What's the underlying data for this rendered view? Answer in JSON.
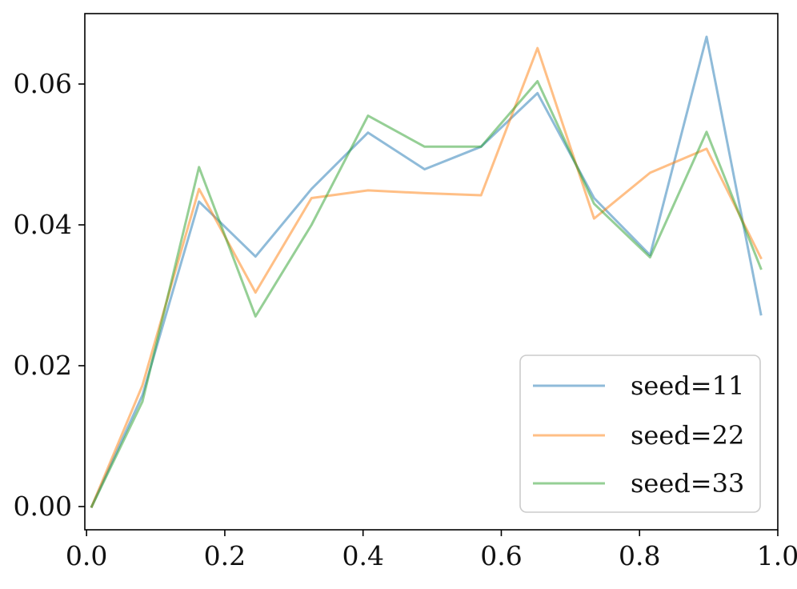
{
  "chart_data": {
    "type": "line",
    "title": "",
    "xlabel": "",
    "ylabel": "",
    "xlim": [
      -0.0025,
      1.0
    ],
    "ylim": [
      -0.0033,
      0.07
    ],
    "grid": false,
    "legend_position": "bottom-right",
    "x_ticks": [
      {
        "value": 0.0,
        "label": "0.0"
      },
      {
        "value": 0.2,
        "label": "0.2"
      },
      {
        "value": 0.4,
        "label": "0.4"
      },
      {
        "value": 0.6,
        "label": "0.6"
      },
      {
        "value": 0.8,
        "label": "0.8"
      },
      {
        "value": 1.0,
        "label": "1.0"
      }
    ],
    "y_ticks": [
      {
        "value": 0.0,
        "label": "0.00"
      },
      {
        "value": 0.02,
        "label": "0.02"
      },
      {
        "value": 0.04,
        "label": "0.04"
      },
      {
        "value": 0.06,
        "label": "0.06"
      }
    ],
    "x": [
      0.0075,
      0.0809,
      0.1627,
      0.2444,
      0.3255,
      0.4072,
      0.489,
      0.5707,
      0.6524,
      0.7342,
      0.8153,
      0.897,
      0.9756
    ],
    "series": [
      {
        "name": "seed=11",
        "color": "#1f77b4",
        "values": [
          0.0,
          0.0158,
          0.0433,
          0.0355,
          0.0451,
          0.0531,
          0.0479,
          0.0511,
          0.0587,
          0.0438,
          0.0357,
          0.0667,
          0.0273
        ]
      },
      {
        "name": "seed=22",
        "color": "#ff7f0e",
        "values": [
          0.0,
          0.0172,
          0.0451,
          0.0304,
          0.0438,
          0.0449,
          0.0445,
          0.0442,
          0.0651,
          0.0409,
          0.0474,
          0.0508,
          0.0353
        ]
      },
      {
        "name": "seed=33",
        "color": "#2ca02c",
        "values": [
          0.0,
          0.0149,
          0.0482,
          0.027,
          0.04,
          0.0555,
          0.0511,
          0.0511,
          0.0604,
          0.043,
          0.0354,
          0.0532,
          0.0338
        ]
      }
    ]
  }
}
